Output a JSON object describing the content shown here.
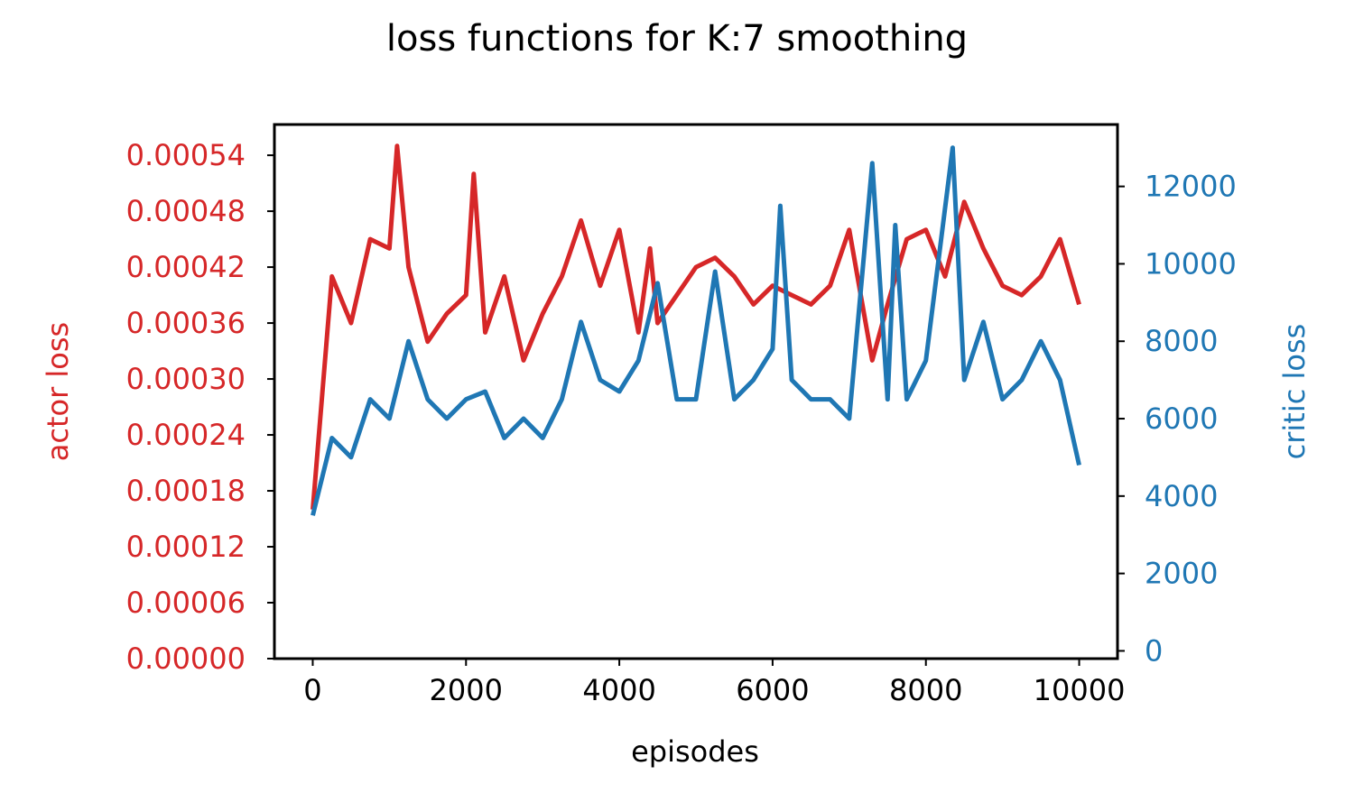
{
  "chart_data": {
    "type": "line",
    "title": "loss functions for K:7 smoothing",
    "xlabel": "episodes",
    "xlim": [
      -500,
      10500
    ],
    "xticks": [
      0,
      2000,
      4000,
      6000,
      8000,
      10000
    ],
    "xtick_labels": [
      "0",
      "2000",
      "4000",
      "6000",
      "8000",
      "10000"
    ],
    "left_axis": {
      "label": "actor loss",
      "color": "#d62728",
      "ylim": [
        0,
        0.000573
      ],
      "ticks": [
        0,
        6e-05,
        0.00012,
        0.00018,
        0.00024,
        0.0003,
        0.00036,
        0.00042,
        0.00048,
        0.00054
      ],
      "tick_labels": [
        "0.00000",
        "0.00006",
        "0.00012",
        "0.00018",
        "0.00024",
        "0.00030",
        "0.00036",
        "0.00042",
        "0.00048",
        "0.00054"
      ]
    },
    "right_axis": {
      "label": "critic loss",
      "color": "#1f77b4",
      "ylim": [
        -200,
        13600
      ],
      "ticks": [
        0,
        2000,
        4000,
        6000,
        8000,
        10000,
        12000
      ],
      "tick_labels": [
        "0",
        "2000",
        "4000",
        "6000",
        "8000",
        "10000",
        "12000"
      ]
    },
    "series": [
      {
        "axis": "left",
        "color": "#d62728",
        "x": [
          0,
          250,
          500,
          750,
          1000,
          1100,
          1250,
          1500,
          1750,
          2000,
          2100,
          2250,
          2500,
          2750,
          3000,
          3250,
          3500,
          3750,
          4000,
          4250,
          4400,
          4500,
          4750,
          5000,
          5250,
          5500,
          5750,
          6000,
          6250,
          6500,
          6750,
          7000,
          7300,
          7500,
          7750,
          8000,
          8250,
          8500,
          8750,
          9000,
          9250,
          9500,
          9750,
          10000
        ],
        "y": [
          0.00016,
          0.00041,
          0.00036,
          0.00045,
          0.00044,
          0.00055,
          0.00042,
          0.00034,
          0.00037,
          0.00039,
          0.00052,
          0.00035,
          0.00041,
          0.00032,
          0.00037,
          0.00041,
          0.00047,
          0.0004,
          0.00046,
          0.00035,
          0.00044,
          0.00036,
          0.00039,
          0.00042,
          0.00043,
          0.00041,
          0.00038,
          0.0004,
          0.00039,
          0.00038,
          0.0004,
          0.00046,
          0.00032,
          0.00038,
          0.00045,
          0.00046,
          0.00041,
          0.00049,
          0.00044,
          0.0004,
          0.00039,
          0.00041,
          0.00045,
          0.00038
        ]
      },
      {
        "axis": "right",
        "color": "#1f77b4",
        "x": [
          0,
          250,
          500,
          750,
          1000,
          1250,
          1500,
          1750,
          2000,
          2250,
          2500,
          2750,
          3000,
          3250,
          3500,
          3750,
          4000,
          4250,
          4500,
          4750,
          5000,
          5250,
          5500,
          5750,
          6000,
          6100,
          6250,
          6500,
          6750,
          7000,
          7300,
          7500,
          7600,
          7750,
          8000,
          8350,
          8500,
          8750,
          9000,
          9250,
          9500,
          9750,
          10000
        ],
        "y": [
          3500,
          5500,
          5000,
          6500,
          6000,
          8000,
          6500,
          6000,
          6500,
          6700,
          5500,
          6000,
          5500,
          6500,
          8500,
          7000,
          6700,
          7500,
          9500,
          6500,
          6500,
          9800,
          6500,
          7000,
          7800,
          11500,
          7000,
          6500,
          6500,
          6000,
          12600,
          6500,
          11000,
          6500,
          7500,
          13000,
          7000,
          8500,
          6500,
          7000,
          8000,
          7000,
          4800
        ]
      }
    ]
  }
}
